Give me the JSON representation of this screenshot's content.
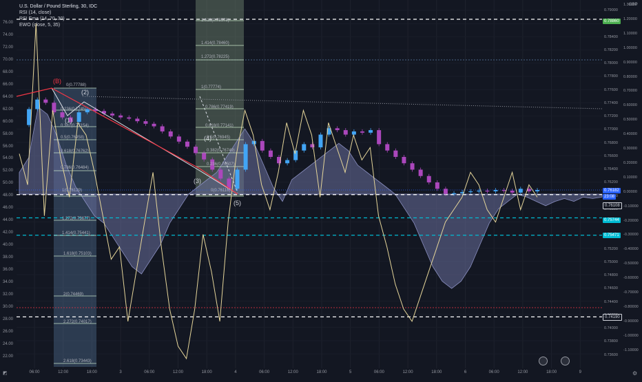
{
  "legend": {
    "symbol": "U.S. Dollar / Pound Sterling, 30, IDC",
    "rsi": "RSI (14, close)",
    "ema": "RSI Ema (14, 70, 30)",
    "ewo": "EWO (close, 5, 35)"
  },
  "currency": "GBP",
  "axis_left": [
    "76.00",
    "74.00",
    "72.00",
    "70.00",
    "68.00",
    "66.00",
    "64.00",
    "62.00",
    "60.00",
    "58.00",
    "56.00",
    "54.00",
    "52.00",
    "50.00",
    "48.00",
    "46.00",
    "44.00",
    "42.00",
    "40.00",
    "38.00",
    "36.00",
    "34.00",
    "32.00",
    "30.00",
    "28.00",
    "26.00",
    "24.00",
    "22.00"
  ],
  "axis_right_price": [
    "0.79000",
    "0.78600",
    "0.78400",
    "0.78200",
    "0.78000",
    "0.77800",
    "0.77600",
    "0.77400",
    "0.77200",
    "0.77000",
    "0.76800",
    "0.76600",
    "0.76400",
    "0.76200",
    "0.76000",
    "0.75800",
    "0.75600",
    "0.75400",
    "0.75200",
    "0.75000",
    "0.74800",
    "0.74600",
    "0.74400",
    "0.74200",
    "0.74000",
    "0.73800",
    "0.73600"
  ],
  "axis_right_ewo": [
    "1.30000",
    "1.20000",
    "1.10000",
    "1.00000",
    "0.90000",
    "0.80000",
    "0.70000",
    "0.60000",
    "0.50000",
    "0.40000",
    "0.30000",
    "0.20000",
    "0.10000",
    "0.00000",
    "-0.10000",
    "-0.20000",
    "-0.30000",
    "-0.40000",
    "-0.50000",
    "-0.60000",
    "-0.70000",
    "-0.80000",
    "-0.90000",
    "-1.00000",
    "-1.10000"
  ],
  "axis_x": [
    "06:00",
    "12:00",
    "18:00",
    "3",
    "06:00",
    "12:00",
    "18:00",
    "4",
    "06:00",
    "12:00",
    "18:00",
    "5",
    "06:00",
    "12:00",
    "18:00",
    "6",
    "06:00",
    "12:00",
    "18:00",
    "9"
  ],
  "price_tags": [
    {
      "text": "0.78860",
      "color": "#4caf50"
    },
    {
      "text": "0.76182",
      "color": "#2962ff"
    },
    {
      "text": "23:08",
      "color": "#2962ff"
    },
    {
      "text": "0.76108",
      "color": "#131722"
    },
    {
      "text": "0.75744",
      "color": "#00bcd4"
    },
    {
      "text": "0.75471",
      "color": "#00bcd4"
    },
    {
      "text": "0.74190",
      "color": "#131722"
    }
  ],
  "fib_left": [
    "0(0.77788)",
    "0.236(0.7745)",
    "0.382(0.77154)",
    "0.5(0.76958)",
    "0.618(0.76762)",
    "0.786(0.76484)",
    "1(0.76129)",
    "1.272(0.75677)",
    "1.414(0.75441)",
    "1.618(0.75103)",
    "2(0.74469)",
    "2.272(0.74017)",
    "2.618(0.73443)"
  ],
  "fib_right": [
    "1.618(0.78578)",
    "1.414(0.78460)",
    "1.272(0.78225)",
    "1(0.77774)",
    "0.786(0.77419)",
    "0.618(0.77141)",
    "0.5(0.76945)",
    "0.382(0.76749)",
    "0.236(0.76507)",
    "0(0.76116)"
  ],
  "wave_labels": [
    "(B)",
    "(2)",
    "(1)",
    "(4)",
    "(3)",
    "(5)"
  ],
  "chart_data": {
    "type": "line",
    "title": "U.S. Dollar / Pound Sterling, 30, IDC",
    "currency": "GBP",
    "price_range": [
      0.735,
      0.7915
    ],
    "rsi_range": [
      21,
      77
    ],
    "ewo_range": [
      -1.15,
      1.33
    ],
    "series": [
      {
        "name": "U.S. Dollar / Pound Sterling, 30, IDC",
        "values": [
          0.772,
          0.7745,
          0.776,
          0.7755,
          0.774,
          0.7732,
          0.7725,
          0.774,
          0.7745,
          0.7742,
          0.7738,
          0.7735,
          0.7732,
          0.773,
          0.7726,
          0.7722,
          0.7718,
          0.771,
          0.7702,
          0.7694,
          0.7686,
          0.7676,
          0.7666,
          0.765,
          0.7636,
          0.762,
          0.765,
          0.769,
          0.7695,
          0.768,
          0.767,
          0.766,
          0.7665,
          0.768,
          0.769,
          0.7685,
          0.7705,
          0.7715,
          0.7712,
          0.7705,
          0.771,
          0.7708,
          0.7712,
          0.769,
          0.768,
          0.767,
          0.766,
          0.765,
          0.764,
          0.763,
          0.762,
          0.7612,
          0.7613,
          0.7615,
          0.7616,
          0.7617,
          0.7616,
          0.7618,
          0.7617,
          0.7614,
          0.762,
          0.7616,
          0.7618
        ]
      },
      {
        "name": "RSI (14, close)",
        "values": [
          55,
          50,
          76,
          45,
          62,
          54,
          48,
          60,
          58,
          52,
          45,
          38,
          40,
          28,
          36,
          44,
          52,
          40,
          30,
          24,
          22,
          30,
          42,
          36,
          28,
          44,
          55,
          62,
          58,
          50,
          46,
          52,
          60,
          55,
          62,
          58,
          48,
          60,
          56,
          52,
          58,
          54,
          56,
          45,
          40,
          34,
          30,
          28,
          32,
          36,
          40,
          44,
          46,
          48,
          52,
          50,
          46,
          44,
          48,
          52,
          46,
          50,
          48
        ]
      },
      {
        "name": "EWO (close, 5, 35)",
        "values": [
          0.15,
          0.25,
          0.6,
          0.55,
          0.4,
          0.2,
          0.05,
          -0.05,
          -0.15,
          -0.2,
          -0.3,
          -0.4,
          -0.5,
          -0.55,
          -0.45,
          -0.35,
          -0.2,
          -0.1,
          0.0,
          0.05,
          0.1,
          0.15,
          0.25,
          0.35,
          0.45,
          0.35,
          0.2,
          0.05,
          -0.05,
          0.1,
          0.15,
          0.2,
          0.25,
          0.3,
          0.35,
          0.3,
          0.2,
          0.15,
          0.1,
          0.05,
          0.0,
          -0.1,
          -0.2,
          -0.35,
          -0.5,
          -0.6,
          -0.65,
          -0.6,
          -0.5,
          -0.35,
          -0.2,
          -0.1,
          -0.05,
          0.0,
          -0.02,
          -0.05,
          -0.08,
          -0.05,
          -0.03,
          -0.05,
          -0.02,
          -0.03,
          -0.02
        ]
      }
    ],
    "horizontal_levels": [
      {
        "price": 0.7886,
        "style": "dashed",
        "color": "#ffffff"
      },
      {
        "price": 0.76108,
        "style": "dashed",
        "color": "#ffffff"
      },
      {
        "price": 0.75744,
        "style": "dashed",
        "color": "#00bcd4"
      },
      {
        "price": 0.75471,
        "style": "dashed",
        "color": "#00bcd4"
      },
      {
        "price": 0.7419,
        "style": "dashed",
        "color": "#ffffff"
      }
    ],
    "colors": {
      "bull": "#42a5f5",
      "bear": "#ab47bc",
      "rsi": "#e6d69a",
      "ewo_fill": "#6a6f9c",
      "fib": "#c8e6c9",
      "wave": "#f23645"
    }
  }
}
